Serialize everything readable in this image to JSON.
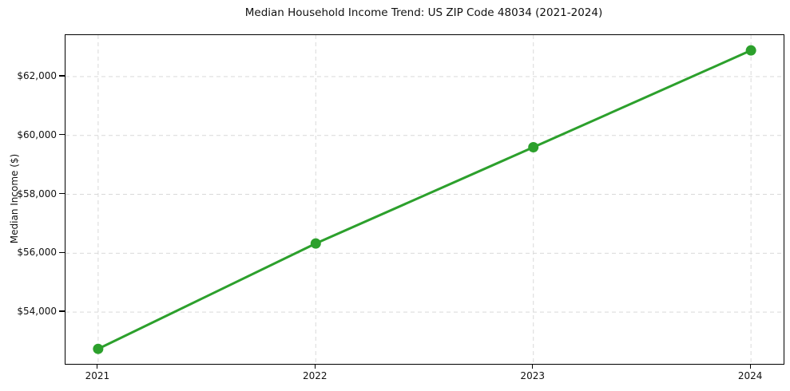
{
  "chart_data": {
    "type": "line",
    "title": "Median Household Income Trend: US ZIP Code 48034 (2021-2024)",
    "xlabel": "",
    "ylabel": "Median Income ($)",
    "x": [
      2021,
      2022,
      2023,
      2024
    ],
    "series": [
      {
        "name": "Median Household Income",
        "values": [
          52750,
          56330,
          59600,
          62890
        ],
        "color": "#2ca02c",
        "marker": "circle",
        "marker_radius": 6.5,
        "line_width": 3
      }
    ],
    "xlim": [
      2020.85,
      2024.15
    ],
    "ylim": [
      52240,
      63410
    ],
    "xticks": [
      2021,
      2022,
      2023,
      2024
    ],
    "xtick_labels": [
      "2021",
      "2022",
      "2023",
      "2024"
    ],
    "yticks": [
      54000,
      56000,
      58000,
      60000,
      62000
    ],
    "ytick_labels": [
      "$54,000",
      "$56,000",
      "$58,000",
      "$60,000",
      "$62,000"
    ],
    "grid": true,
    "grid_color": "#d9d9d9",
    "grid_dash": "5 4",
    "spine_color": "#000000",
    "background": "#ffffff",
    "legend": false
  }
}
